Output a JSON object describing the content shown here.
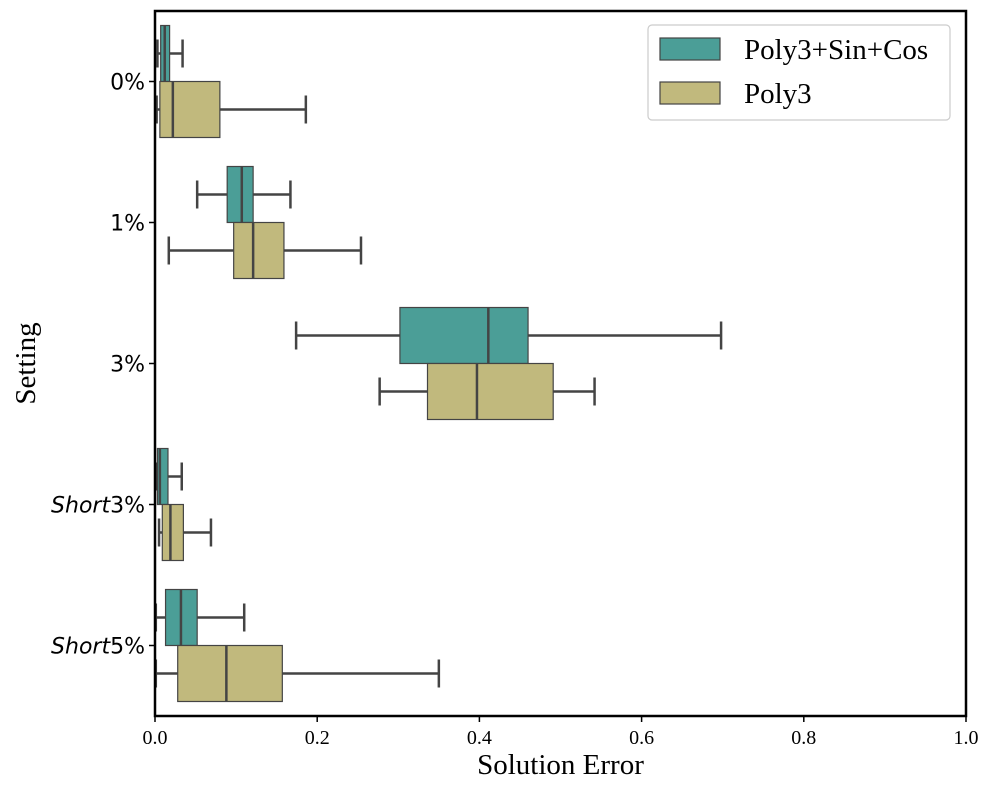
{
  "chart_data": {
    "type": "boxplot",
    "orientation": "horizontal",
    "title": "",
    "xlabel": "Solution Error",
    "ylabel": "Setting",
    "xlim": [
      0.0,
      1.0
    ],
    "xticks": [
      "0.0",
      "0.2",
      "0.4",
      "0.6",
      "0.8",
      "1.0"
    ],
    "xtick_values": [
      0.0,
      0.2,
      0.4,
      0.6,
      0.8,
      1.0
    ],
    "categories": [
      {
        "label": "0%",
        "italic_part": ""
      },
      {
        "label": "1%",
        "italic_part": ""
      },
      {
        "label": "3%",
        "italic_part": ""
      },
      {
        "label": "3%",
        "italic_part": "Short"
      },
      {
        "label": "5%",
        "italic_part": "Short"
      }
    ],
    "legend": {
      "position": "top-right",
      "entries": [
        "Poly3+Sin+Cos",
        "Poly3"
      ]
    },
    "series": [
      {
        "name": "Poly3+Sin+Cos",
        "color": "#4b9e97",
        "boxes": [
          {
            "whisker_low": 0.003,
            "q1": 0.007,
            "median": 0.012,
            "q3": 0.018,
            "whisker_high": 0.034
          },
          {
            "whisker_low": 0.052,
            "q1": 0.089,
            "median": 0.107,
            "q3": 0.121,
            "whisker_high": 0.167
          },
          {
            "whisker_low": 0.174,
            "q1": 0.302,
            "median": 0.411,
            "q3": 0.46,
            "whisker_high": 0.698
          },
          {
            "whisker_low": 0.001,
            "q1": 0.003,
            "median": 0.006,
            "q3": 0.016,
            "whisker_high": 0.033
          },
          {
            "whisker_low": 0.001,
            "q1": 0.013,
            "median": 0.032,
            "q3": 0.052,
            "whisker_high": 0.11
          }
        ]
      },
      {
        "name": "Poly3",
        "color": "#c1b97d",
        "boxes": [
          {
            "whisker_low": 0.002,
            "q1": 0.006,
            "median": 0.022,
            "q3": 0.08,
            "whisker_high": 0.186
          },
          {
            "whisker_low": 0.017,
            "q1": 0.097,
            "median": 0.121,
            "q3": 0.159,
            "whisker_high": 0.254
          },
          {
            "whisker_low": 0.277,
            "q1": 0.336,
            "median": 0.397,
            "q3": 0.491,
            "whisker_high": 0.542
          },
          {
            "whisker_low": 0.005,
            "q1": 0.009,
            "median": 0.019,
            "q3": 0.035,
            "whisker_high": 0.069
          },
          {
            "whisker_low": 0.001,
            "q1": 0.028,
            "median": 0.088,
            "q3": 0.157,
            "whisker_high": 0.35
          }
        ]
      }
    ]
  }
}
